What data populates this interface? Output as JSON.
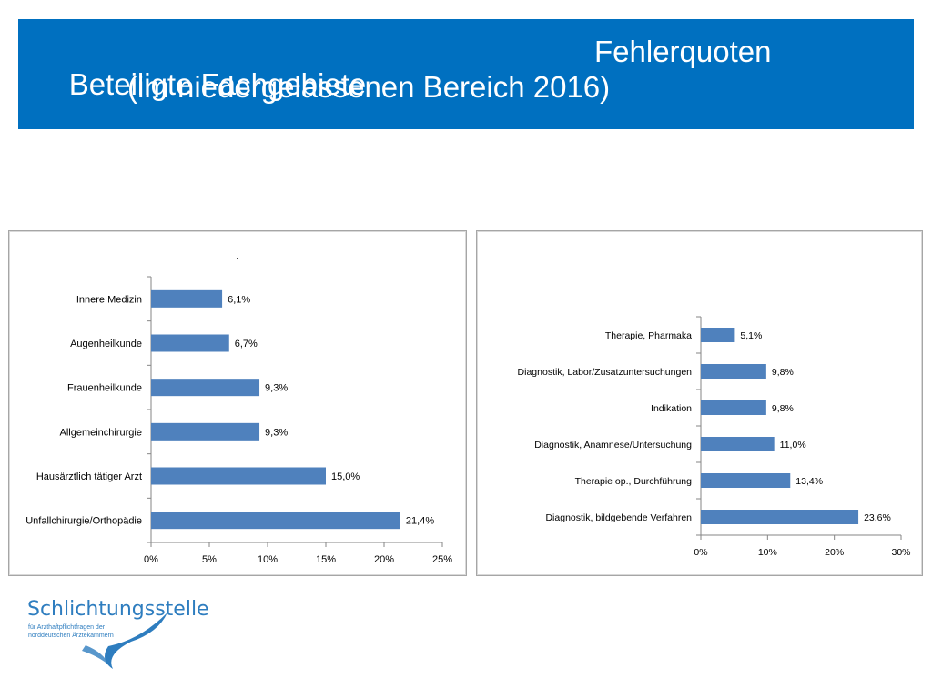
{
  "slide": {
    "title_left": "Beteiligte Fachgebiete",
    "title_right": "Fehlerquoten",
    "title_line2": "(im niedergelassenen Bereich 2016)",
    "stray_mark": "."
  },
  "logo": {
    "name": "Schlichtungsstelle",
    "subtitle_line1": "für Arzthaftpflichtfragen der",
    "subtitle_line2": "norddeutschen Ärztekammern"
  },
  "colors": {
    "header_bg": "#0070c0",
    "bar": "#4f81bd",
    "logo": "#2e7dbf"
  },
  "chart_data": [
    {
      "type": "bar",
      "orientation": "horizontal",
      "categories": [
        "Innere Medizin",
        "Augenheilkunde",
        "Frauenheilkunde",
        "Allgemeinchirurgie",
        "Hausärztlich tätiger Arzt",
        "Unfallchirurgie/Orthopädie"
      ],
      "values": [
        6.1,
        6.7,
        9.3,
        9.3,
        15.0,
        21.4
      ],
      "data_labels": [
        "6,1%",
        "6,7%",
        "9,3%",
        "9,3%",
        "15,0%",
        "21,4%"
      ],
      "xlim": [
        0,
        25
      ],
      "xticks": [
        "0%",
        "5%",
        "10%",
        "15%",
        "20%",
        "25%"
      ],
      "grid": false,
      "legend": "none"
    },
    {
      "type": "bar",
      "orientation": "horizontal",
      "categories": [
        "Therapie, Pharmaka",
        "Diagnostik, Labor/Zusatzuntersuchungen",
        "Indikation",
        "Diagnostik, Anamnese/Untersuchung",
        "Therapie op., Durchführung",
        "Diagnostik, bildgebende Verfahren"
      ],
      "values": [
        5.1,
        9.8,
        9.8,
        11.0,
        13.4,
        23.6
      ],
      "data_labels": [
        "5,1%",
        "9,8%",
        "9,8%",
        "11,0%",
        "13,4%",
        "23,6%"
      ],
      "xlim": [
        0,
        30
      ],
      "xticks": [
        "0%",
        "10%",
        "20%",
        "30%"
      ],
      "grid": false,
      "legend": "none"
    }
  ]
}
